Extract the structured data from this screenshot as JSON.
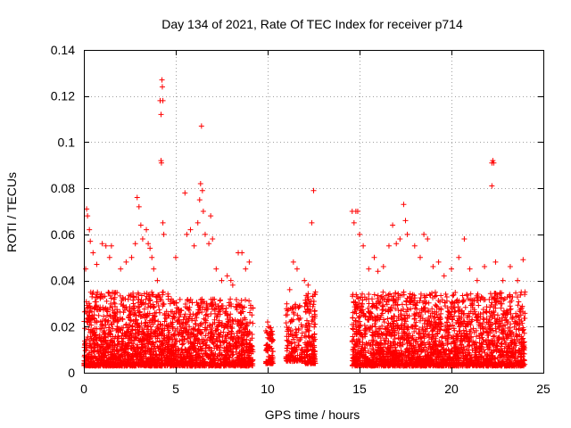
{
  "chart_data": {
    "type": "scatter",
    "title": "Day 134 of 2021, Rate Of TEC Index for receiver p714",
    "xlabel": "GPS time / hours",
    "ylabel": "ROTI / TECUs",
    "xlim": [
      0,
      25
    ],
    "ylim": [
      0,
      0.14
    ],
    "x_ticks": [
      0,
      5,
      10,
      15,
      20,
      25
    ],
    "x_tick_labels": [
      "0",
      "5",
      "10",
      "15",
      "20",
      "25"
    ],
    "y_ticks": [
      0,
      0.02,
      0.04,
      0.06,
      0.08,
      0.1,
      0.12,
      0.14
    ],
    "y_tick_labels": [
      "0",
      "0.02",
      "0.04",
      "0.06",
      "0.08",
      "0.1",
      "0.12",
      "0.14"
    ],
    "grid": true,
    "marker": "plus",
    "color": "#ff0000",
    "series": [
      {
        "name": "ROTI",
        "points": [
          [
            0.1,
            0.045
          ],
          [
            0.15,
            0.071
          ],
          [
            0.2,
            0.068
          ],
          [
            0.3,
            0.062
          ],
          [
            0.35,
            0.057
          ],
          [
            0.5,
            0.052
          ],
          [
            0.7,
            0.047
          ],
          [
            1.0,
            0.056
          ],
          [
            1.2,
            0.055
          ],
          [
            1.4,
            0.05
          ],
          [
            1.5,
            0.055
          ],
          [
            2.0,
            0.045
          ],
          [
            2.3,
            0.048
          ],
          [
            2.6,
            0.05
          ],
          [
            2.8,
            0.056
          ],
          [
            2.9,
            0.076
          ],
          [
            3.0,
            0.072
          ],
          [
            3.1,
            0.064
          ],
          [
            3.2,
            0.058
          ],
          [
            3.4,
            0.062
          ],
          [
            3.5,
            0.056
          ],
          [
            3.6,
            0.054
          ],
          [
            3.7,
            0.05
          ],
          [
            3.8,
            0.045
          ],
          [
            4.0,
            0.04
          ],
          [
            4.15,
            0.118
          ],
          [
            4.2,
            0.112
          ],
          [
            4.25,
            0.127
          ],
          [
            4.27,
            0.124
          ],
          [
            4.3,
            0.118
          ],
          [
            4.2,
            0.092
          ],
          [
            4.22,
            0.091
          ],
          [
            4.3,
            0.065
          ],
          [
            4.35,
            0.06
          ],
          [
            5.0,
            0.05
          ],
          [
            5.5,
            0.078
          ],
          [
            5.6,
            0.06
          ],
          [
            5.8,
            0.062
          ],
          [
            6.0,
            0.055
          ],
          [
            6.2,
            0.065
          ],
          [
            6.3,
            0.075
          ],
          [
            6.35,
            0.082
          ],
          [
            6.4,
            0.107
          ],
          [
            6.45,
            0.079
          ],
          [
            6.5,
            0.07
          ],
          [
            6.6,
            0.06
          ],
          [
            6.8,
            0.056
          ],
          [
            6.9,
            0.068
          ],
          [
            7.0,
            0.058
          ],
          [
            7.2,
            0.045
          ],
          [
            7.5,
            0.04
          ],
          [
            7.8,
            0.042
          ],
          [
            8.0,
            0.04
          ],
          [
            8.1,
            0.038
          ],
          [
            8.4,
            0.052
          ],
          [
            8.6,
            0.052
          ],
          [
            8.8,
            0.045
          ],
          [
            9.0,
            0.048
          ],
          [
            9.2,
            0.028
          ],
          [
            10.0,
            0.022
          ],
          [
            10.2,
            0.018
          ],
          [
            11.0,
            0.025
          ],
          [
            11.2,
            0.036
          ],
          [
            11.4,
            0.048
          ],
          [
            11.6,
            0.045
          ],
          [
            12.0,
            0.04
          ],
          [
            12.2,
            0.038
          ],
          [
            12.4,
            0.065
          ],
          [
            12.5,
            0.079
          ],
          [
            12.6,
            0.035
          ],
          [
            14.6,
            0.07
          ],
          [
            14.7,
            0.065
          ],
          [
            14.8,
            0.07
          ],
          [
            14.9,
            0.07
          ],
          [
            15.0,
            0.06
          ],
          [
            15.2,
            0.055
          ],
          [
            15.5,
            0.045
          ],
          [
            15.8,
            0.05
          ],
          [
            16.0,
            0.044
          ],
          [
            16.3,
            0.046
          ],
          [
            16.6,
            0.055
          ],
          [
            16.8,
            0.064
          ],
          [
            17.0,
            0.056
          ],
          [
            17.2,
            0.058
          ],
          [
            17.4,
            0.073
          ],
          [
            17.5,
            0.066
          ],
          [
            17.6,
            0.06
          ],
          [
            18.0,
            0.055
          ],
          [
            18.3,
            0.05
          ],
          [
            18.5,
            0.06
          ],
          [
            18.7,
            0.058
          ],
          [
            19.0,
            0.046
          ],
          [
            19.3,
            0.048
          ],
          [
            19.6,
            0.042
          ],
          [
            20.0,
            0.045
          ],
          [
            20.4,
            0.05
          ],
          [
            20.7,
            0.058
          ],
          [
            21.0,
            0.045
          ],
          [
            21.4,
            0.04
          ],
          [
            21.8,
            0.046
          ],
          [
            22.2,
            0.091
          ],
          [
            22.25,
            0.092
          ],
          [
            22.3,
            0.091
          ],
          [
            22.2,
            0.081
          ],
          [
            22.4,
            0.048
          ],
          [
            22.8,
            0.04
          ],
          [
            23.2,
            0.046
          ],
          [
            23.6,
            0.04
          ],
          [
            23.9,
            0.049
          ],
          [
            24.0,
            0.035
          ]
        ],
        "scatter_clusters": [
          {
            "x_range": [
              0.0,
              4.6
            ],
            "y_range": [
              0.003,
              0.035
            ],
            "count": 1300
          },
          {
            "x_range": [
              4.6,
              9.2
            ],
            "y_range": [
              0.003,
              0.032
            ],
            "count": 1100
          },
          {
            "x_range": [
              9.9,
              10.3
            ],
            "y_range": [
              0.004,
              0.02
            ],
            "count": 90
          },
          {
            "x_range": [
              11.0,
              11.9
            ],
            "y_range": [
              0.005,
              0.03
            ],
            "count": 150
          },
          {
            "x_range": [
              12.0,
              12.6
            ],
            "y_range": [
              0.004,
              0.035
            ],
            "count": 160
          },
          {
            "x_range": [
              14.6,
              24.0
            ],
            "y_range": [
              0.003,
              0.035
            ],
            "count": 2400
          }
        ]
      }
    ]
  }
}
